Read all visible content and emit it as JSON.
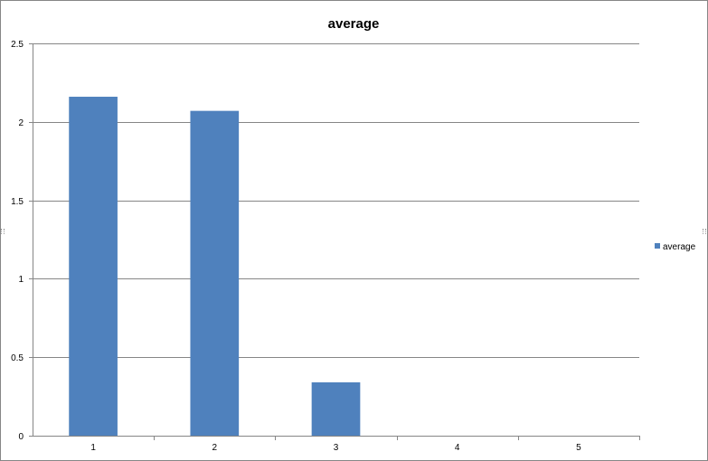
{
  "chart_data": {
    "type": "bar",
    "title": "average",
    "xlabel": "",
    "ylabel": "",
    "categories": [
      "1",
      "2",
      "3",
      "4",
      "5"
    ],
    "series": [
      {
        "name": "average",
        "values": [
          2.16,
          2.07,
          0.34,
          0,
          0
        ],
        "color": "#4F81BD"
      }
    ],
    "ylim": [
      0,
      2.5
    ],
    "yticks": [
      0,
      0.5,
      1,
      1.5,
      2,
      2.5
    ],
    "ytick_labels": [
      "0",
      "0.5",
      "1",
      "1.5",
      "2",
      "2.5"
    ],
    "grid": true,
    "legend": {
      "position": "right",
      "entries": [
        "average"
      ]
    },
    "colors": {
      "bar": "#4F81BD",
      "grid": "#868686",
      "axis": "#868686",
      "border": "#868686"
    }
  }
}
